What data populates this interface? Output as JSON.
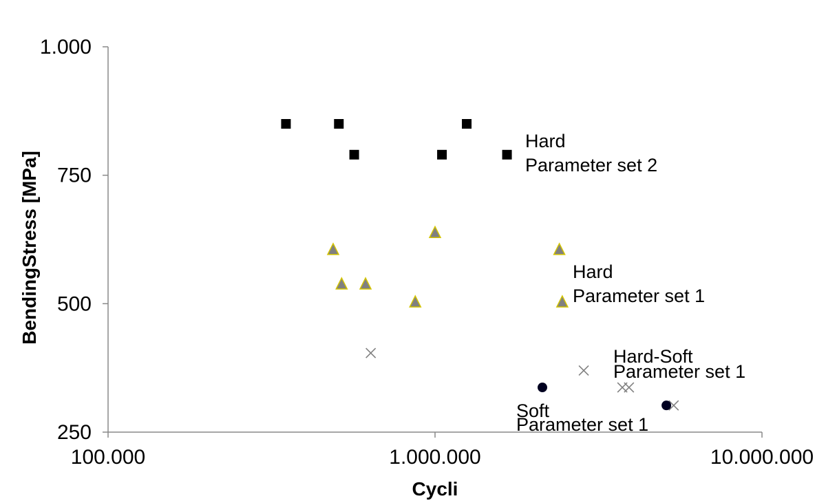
{
  "chart_data": {
    "type": "scatter",
    "xlabel": "Cycli",
    "ylabel": "BendingStress [MPa]",
    "x_scale": "log",
    "xlim": [
      100000,
      10000000
    ],
    "ylim": [
      250,
      1000
    ],
    "x_ticks": [
      {
        "value": 100000,
        "label": "100.000"
      },
      {
        "value": 1000000,
        "label": "1.000.000"
      },
      {
        "value": 10000000,
        "label": "10.000.000"
      }
    ],
    "y_ticks": [
      {
        "value": 250,
        "label": "250"
      },
      {
        "value": 500,
        "label": "500"
      },
      {
        "value": 750,
        "label": "750"
      },
      {
        "value": 1000,
        "label": "1.000"
      }
    ],
    "grid": false,
    "series": [
      {
        "marker": "square",
        "color": "#000000",
        "points": [
          {
            "x": 350000,
            "y": 850
          },
          {
            "x": 508000,
            "y": 850
          },
          {
            "x": 566000,
            "y": 790
          },
          {
            "x": 1050000,
            "y": 790
          },
          {
            "x": 1250000,
            "y": 850
          },
          {
            "x": 1660000,
            "y": 790
          }
        ]
      },
      {
        "marker": "triangle",
        "color": "#808080",
        "edge_color": "#d4c400",
        "points": [
          {
            "x": 488000,
            "y": 605
          },
          {
            "x": 518000,
            "y": 538
          },
          {
            "x": 613000,
            "y": 538
          },
          {
            "x": 870000,
            "y": 503
          },
          {
            "x": 1000000,
            "y": 638
          },
          {
            "x": 2400000,
            "y": 605
          },
          {
            "x": 2450000,
            "y": 503
          }
        ]
      },
      {
        "marker": "x",
        "color": "#808080",
        "points": [
          {
            "x": 636000,
            "y": 404
          },
          {
            "x": 2850000,
            "y": 370
          },
          {
            "x": 3740000,
            "y": 337
          },
          {
            "x": 3920000,
            "y": 337
          },
          {
            "x": 5370000,
            "y": 302
          }
        ]
      },
      {
        "marker": "circle",
        "color": "#000020",
        "points": [
          {
            "x": 2130000,
            "y": 337
          },
          {
            "x": 5100000,
            "y": 302
          }
        ]
      }
    ],
    "annotations": [
      {
        "lines": [
          "Hard",
          "Parameter set 2"
        ]
      },
      {
        "lines": [
          "Hard",
          "Parameter set 1"
        ]
      },
      {
        "lines": [
          "Hard-Soft",
          "Parameter set 1"
        ]
      },
      {
        "lines": [
          "Soft",
          "Parameter set 1"
        ]
      }
    ]
  }
}
